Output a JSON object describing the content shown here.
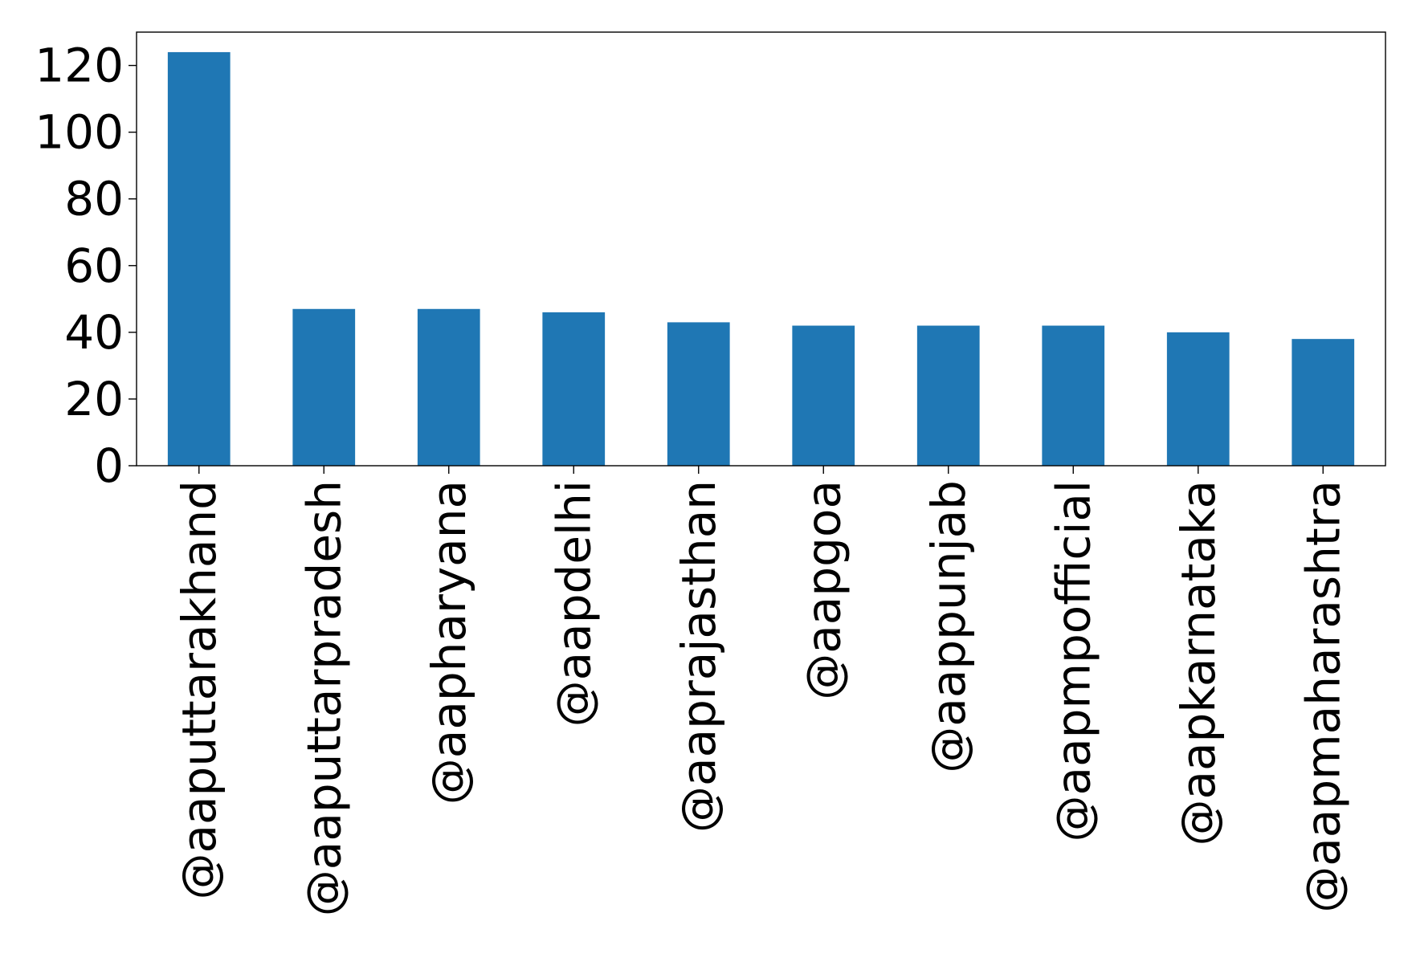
{
  "chart_data": {
    "type": "bar",
    "title": "",
    "xlabel": "",
    "ylabel": "",
    "categories": [
      "@aaputtarakhand",
      "@aaputtarpradesh",
      "@aapharyana",
      "@aapdelhi",
      "@aaprajasthan",
      "@aapgoa",
      "@aappunjab",
      "@aapmpofficial",
      "@aapkarnataka",
      "@aapmaharashtra"
    ],
    "values": [
      124,
      47,
      47,
      46,
      43,
      42,
      42,
      42,
      40,
      38
    ],
    "ylim": [
      0,
      130
    ],
    "yticks": [
      0,
      20,
      40,
      60,
      80,
      100,
      120
    ],
    "bar_color": "#1f77b4",
    "grid": false,
    "legend": "none"
  }
}
